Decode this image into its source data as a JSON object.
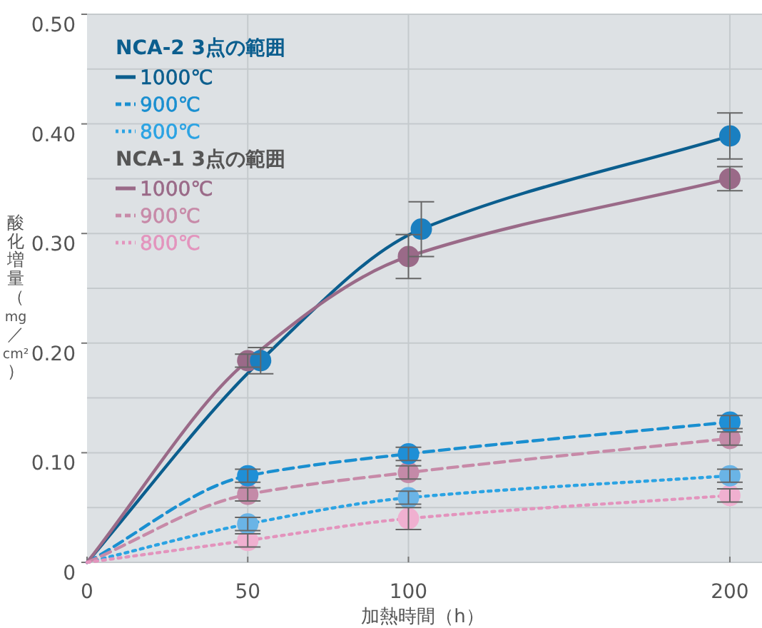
{
  "chart_data": {
    "type": "line",
    "xlabel": "加熱時間（h）",
    "ylabel": "酸化増量（mg／cm²）",
    "annotations": [
      "NCA-2 3点の範囲",
      "NCA-1 3点の範囲"
    ],
    "xlim": [
      0,
      210
    ],
    "xticks": [
      0,
      50,
      100,
      200
    ],
    "ylim": [
      0,
      0.5
    ],
    "yticks": [
      0,
      {
        "value": 0.05,
        "label": null
      },
      {
        "value": 0.1,
        "label": "0.10"
      },
      {
        "value": 0.15,
        "label": null
      },
      {
        "value": 0.2,
        "label": "0.20"
      },
      {
        "value": 0.25,
        "label": null
      },
      {
        "value": 0.3,
        "label": "0.30"
      },
      {
        "value": 0.35,
        "label": null
      },
      {
        "value": 0.4,
        "label": "0.40"
      },
      {
        "value": 0.45,
        "label": null
      },
      {
        "value": 0.5,
        "label": "0.50"
      }
    ],
    "grid": true,
    "legend": "top left",
    "series": [
      {
        "name": "1000℃",
        "line_style": "solid",
        "color": "#0b5e8e",
        "x": [
          0,
          54,
          104,
          200
        ],
        "values": [
          0,
          0.184,
          0.304,
          0.389
        ]
      },
      {
        "name": "900℃",
        "line_style": "dashed",
        "color": "#1a8fd0",
        "x": [
          0,
          50,
          100,
          200
        ],
        "values": [
          0,
          0.079,
          0.099,
          0.128
        ]
      },
      {
        "name": "800℃",
        "line_style": "dotted",
        "color": "#2ba3e3",
        "x": [
          0,
          50,
          100,
          200
        ],
        "values": [
          0,
          0.035,
          0.059,
          0.079
        ]
      },
      {
        "name": "1000℃",
        "line_style": "solid",
        "color": "#9a6a88",
        "x": [
          0,
          50,
          100,
          200
        ],
        "values": [
          0,
          0.184,
          0.279,
          0.35
        ]
      },
      {
        "name": "900℃",
        "line_style": "dashed",
        "color": "#c78aa8",
        "x": [
          0,
          50,
          100,
          200
        ],
        "values": [
          0,
          0.062,
          0.082,
          0.113
        ]
      },
      {
        "name": "800℃",
        "line_style": "dotted",
        "color": "#e394bd",
        "x": [
          0,
          50,
          100,
          200
        ],
        "values": [
          0,
          0.02,
          0.04,
          0.061
        ]
      },
      {
        "type": "scatter",
        "marker": "circle",
        "color": "#c48aa8",
        "x": [
          50,
          100,
          200
        ],
        "values": [
          0.062,
          0.082,
          0.113
        ],
        "errors": [
          0.006,
          0.006,
          0.006
        ]
      },
      {
        "type": "scatter",
        "marker": "circle",
        "color": "#f0b0d0",
        "x": [
          50,
          100,
          200
        ],
        "values": [
          0.02,
          0.04,
          0.061
        ],
        "errors": [
          0.006,
          0.01,
          0.006
        ]
      },
      {
        "type": "scatter",
        "marker": "circle",
        "color": "#9a6a88",
        "x": [
          50,
          100,
          200
        ],
        "values": [
          0.184,
          0.279,
          0.35
        ],
        "errors": [
          0.006,
          0.02,
          0.011
        ]
      },
      {
        "type": "scatter",
        "marker": "circle",
        "color": "#6ab4e6",
        "x": [
          50,
          100,
          200
        ],
        "values": [
          0.035,
          0.059,
          0.079
        ],
        "errors": [
          0.006,
          0.006,
          0.006
        ]
      },
      {
        "type": "scatter",
        "marker": "circle",
        "color": "#1f8fd6",
        "x": [
          50,
          100,
          200
        ],
        "values": [
          0.079,
          0.099,
          0.128
        ],
        "errors": [
          0.006,
          0.006,
          0.006
        ]
      },
      {
        "type": "scatter",
        "marker": "circle",
        "color": "#1a7fc0",
        "x": [
          54,
          104,
          200
        ],
        "values": [
          0.184,
          0.304,
          0.389
        ],
        "errors": [
          0.012,
          0.025,
          0.021
        ]
      }
    ]
  }
}
